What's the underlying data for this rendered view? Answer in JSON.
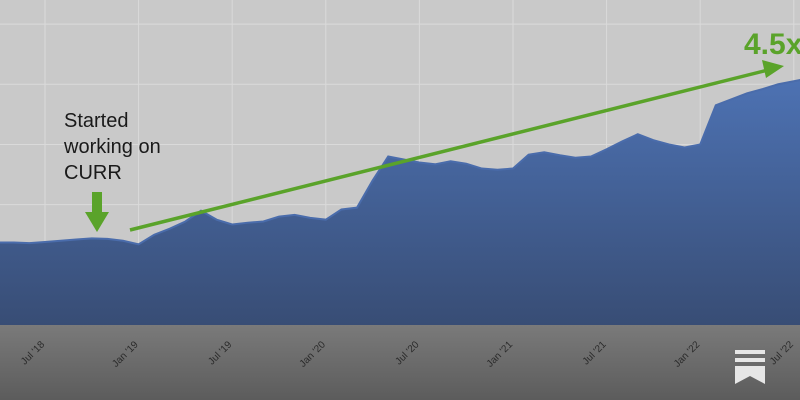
{
  "chart_data": {
    "type": "area",
    "annotations": [
      "Started working on CURR",
      "4.5x"
    ],
    "categories": [
      null,
      null,
      null,
      "Jul '18",
      null,
      null,
      null,
      null,
      null,
      "Jan '19",
      null,
      null,
      null,
      null,
      null,
      "Jul '19",
      null,
      null,
      null,
      null,
      null,
      "Jan '20",
      null,
      null,
      null,
      null,
      null,
      "Jul '20",
      null,
      null,
      null,
      null,
      null,
      "Jan '21",
      null,
      null,
      null,
      null,
      null,
      "Jul '21",
      null,
      null,
      null,
      null,
      null,
      "Jan '22",
      null,
      null,
      null,
      null,
      null,
      "Jul '22",
      null
    ],
    "values": [
      1.37,
      1.37,
      1.36,
      1.38,
      1.4,
      1.42,
      1.44,
      1.43,
      1.4,
      1.34,
      1.5,
      1.6,
      1.72,
      1.9,
      1.75,
      1.67,
      1.7,
      1.72,
      1.8,
      1.83,
      1.78,
      1.75,
      1.92,
      1.95,
      2.4,
      2.8,
      2.75,
      2.7,
      2.67,
      2.72,
      2.68,
      2.6,
      2.58,
      2.6,
      2.83,
      2.87,
      2.82,
      2.78,
      2.8,
      2.92,
      3.05,
      3.17,
      3.07,
      3.0,
      2.95,
      3.0,
      3.65,
      3.75,
      3.85,
      3.92,
      4.0,
      4.05,
      4.1
    ],
    "color": "#4a6cab",
    "ylim": [
      0,
      5.4
    ],
    "yticks": [
      1,
      2,
      3,
      4,
      5
    ],
    "grid": true
  }
}
